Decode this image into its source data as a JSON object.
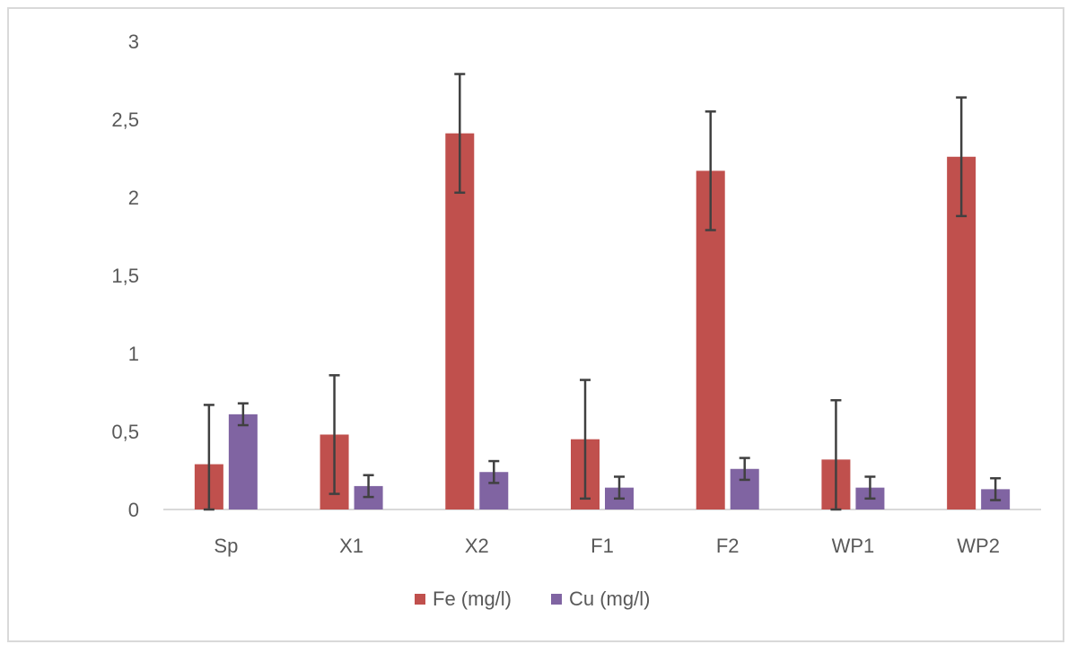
{
  "chart_data": {
    "type": "bar",
    "categories": [
      "Sp",
      "X1",
      "X2",
      "F1",
      "F2",
      "WP1",
      "WP2"
    ],
    "series": [
      {
        "name": "Fe (mg/l)",
        "color": "#c0504d",
        "values": [
          0.29,
          0.48,
          2.41,
          0.45,
          2.17,
          0.32,
          2.26
        ],
        "error": [
          0.38,
          0.38,
          0.38,
          0.38,
          0.38,
          0.38,
          0.38
        ]
      },
      {
        "name": "Cu (mg/l)",
        "color": "#8064a2",
        "values": [
          0.61,
          0.15,
          0.24,
          0.14,
          0.26,
          0.14,
          0.13
        ],
        "error": [
          0.07,
          0.07,
          0.07,
          0.07,
          0.07,
          0.07,
          0.07
        ]
      }
    ],
    "y_ticks": [
      "0",
      "0,5",
      "1",
      "1,5",
      "2",
      "2,5",
      "3"
    ],
    "ylim": [
      0,
      3
    ],
    "grid": false,
    "legend_position": "bottom",
    "title": "",
    "xlabel": "",
    "ylabel": ""
  }
}
